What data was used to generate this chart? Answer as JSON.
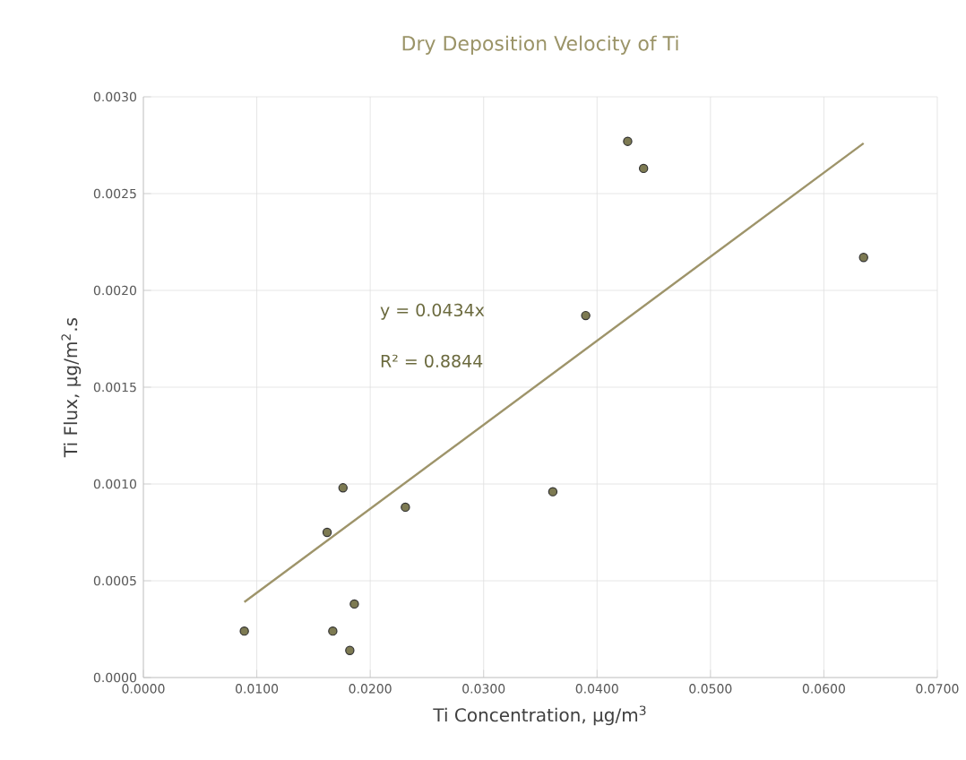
{
  "chart_data": {
    "type": "scatter",
    "title": "Dry Deposition Velocity of Ti",
    "xlabel": "Ti Concentration, μg/m$^{3}$",
    "ylabel": "Ti Flux, μg/m$^{2}$.s",
    "annotations": [
      "y = 0.0434x",
      "R² = 0.8844"
    ],
    "series": [
      {
        "color": "#7d7a52",
        "marker": "circle",
        "x": [
          0.0089,
          0.0162,
          0.0176,
          0.0167,
          0.0182,
          0.0186,
          0.0231,
          0.0361,
          0.039,
          0.0427,
          0.0441,
          0.0635
        ],
        "values": [
          0.00024,
          0.00075,
          0.00098,
          0.00024,
          0.00014,
          0.00038,
          0.00088,
          0.00096,
          0.00187,
          0.00277,
          0.00263,
          0.00217
        ]
      },
      {
        "type": "line",
        "marker": "none",
        "color": "#9e946a",
        "x": [
          0.0089,
          0.0635
        ],
        "values": [
          0.00039,
          0.00276
        ]
      }
    ],
    "xlim": [
      0,
      0.07
    ],
    "ylim": [
      0,
      0.003
    ],
    "xticks": [
      {
        "value": 0,
        "label": "0.0000"
      },
      {
        "value": 0.01,
        "label": "0.0100"
      },
      {
        "value": 0.02,
        "label": "0.0200"
      },
      {
        "value": 0.03,
        "label": "0.0300"
      },
      {
        "value": 0.04,
        "label": "0.0400"
      },
      {
        "value": 0.05,
        "label": "0.0500"
      },
      {
        "value": 0.06,
        "label": "0.0600"
      },
      {
        "value": 0.07,
        "label": "0.0700"
      }
    ],
    "yticks": [
      {
        "value": 0,
        "label": "0.0000"
      },
      {
        "value": 0.0005,
        "label": "0.0005"
      },
      {
        "value": 0.001,
        "label": "0.0010"
      },
      {
        "value": 0.0015,
        "label": "0.0015"
      },
      {
        "value": 0.002,
        "label": "0.0020"
      },
      {
        "value": 0.0025,
        "label": "0.0025"
      },
      {
        "value": 0.003,
        "label": "0.0030"
      }
    ],
    "grid": true
  }
}
